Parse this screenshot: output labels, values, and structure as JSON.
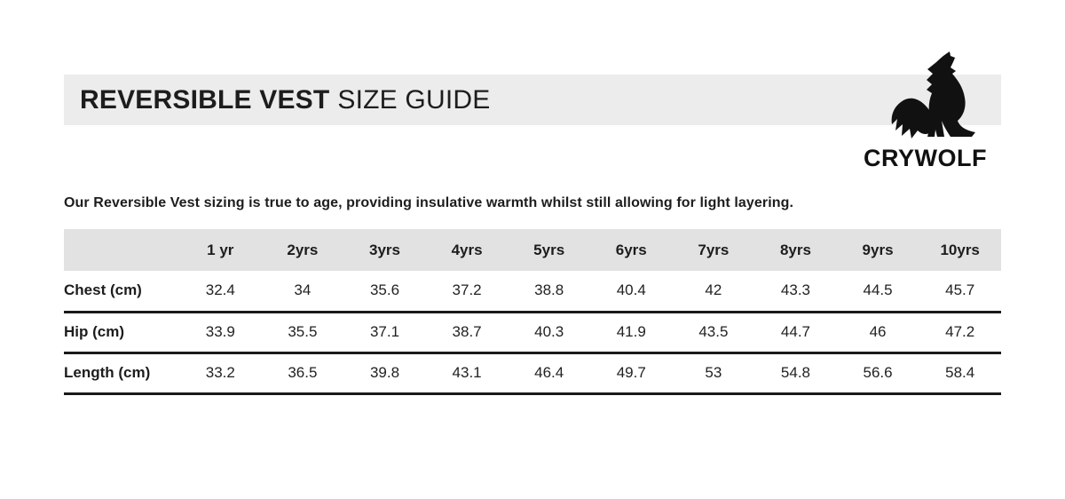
{
  "header": {
    "title_bold": "REVERSIBLE VEST",
    "title_light": "SIZE GUIDE",
    "brand": "CRYWOLF",
    "logo_icon": "howling-wolf-icon"
  },
  "intro": {
    "text": "Our Reversible Vest sizing is true to age, providing insulative warmth whilst still allowing for light layering."
  },
  "colors": {
    "title_bar_gray": "#ececec",
    "table_header_gray": "#e2e2e2",
    "rule_black": "#1a1a1a",
    "text_black": "#1d1d1d"
  },
  "chart_data": {
    "type": "table",
    "title": "Reversible Vest Size Guide",
    "columns": [
      "1 yr",
      "2yrs",
      "3yrs",
      "4yrs",
      "5yrs",
      "6yrs",
      "7yrs",
      "8yrs",
      "9yrs",
      "10yrs"
    ],
    "rows": [
      {
        "label": "Chest (cm)",
        "values": [
          "32.4",
          "34",
          "35.6",
          "37.2",
          "38.8",
          "40.4",
          "42",
          "43.3",
          "44.5",
          "45.7"
        ]
      },
      {
        "label": "Hip (cm)",
        "values": [
          "33.9",
          "35.5",
          "37.1",
          "38.7",
          "40.3",
          "41.9",
          "43.5",
          "44.7",
          "46",
          "47.2"
        ]
      },
      {
        "label": "Length (cm)",
        "values": [
          "33.2",
          "36.5",
          "39.8",
          "43.1",
          "46.4",
          "49.7",
          "53",
          "54.8",
          "56.6",
          "58.4"
        ]
      }
    ]
  }
}
